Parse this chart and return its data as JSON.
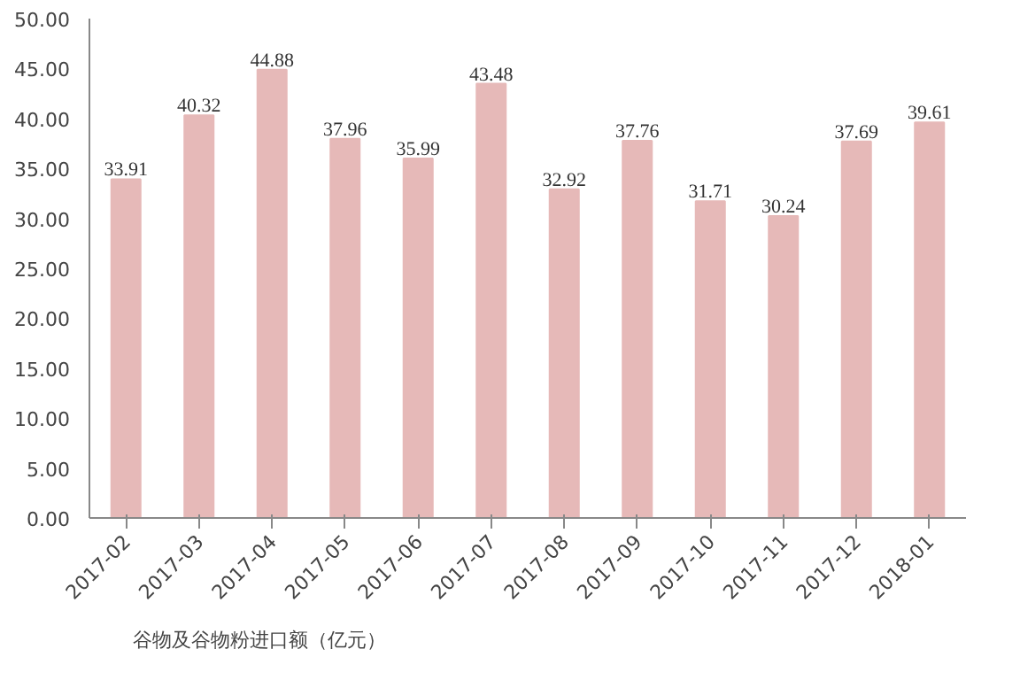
{
  "chart_data": {
    "type": "bar",
    "categories": [
      "2017-02",
      "2017-03",
      "2017-04",
      "2017-05",
      "2017-06",
      "2017-07",
      "2017-08",
      "2017-09",
      "2017-10",
      "2017-11",
      "2017-12",
      "2018-01"
    ],
    "series": [
      {
        "name": "谷物及谷物粉进口额（亿元）",
        "color": "#e6b9b8",
        "values": [
          33.91,
          40.32,
          44.88,
          37.96,
          35.99,
          43.48,
          32.92,
          37.76,
          31.71,
          30.24,
          37.69,
          39.61
        ]
      }
    ],
    "ylim": [
      0,
      50
    ],
    "yticks": [
      {
        "value": 0,
        "label": "0.00"
      },
      {
        "value": 5,
        "label": "5.00"
      },
      {
        "value": 10,
        "label": "10.00"
      },
      {
        "value": 15,
        "label": "15.00"
      },
      {
        "value": 20,
        "label": "20.00"
      },
      {
        "value": 25,
        "label": "25.00"
      },
      {
        "value": 30,
        "label": "30.00"
      },
      {
        "value": 35,
        "label": "35.00"
      },
      {
        "value": 40,
        "label": "40.00"
      },
      {
        "value": 45,
        "label": "45.00"
      },
      {
        "value": 50,
        "label": "50.00"
      }
    ],
    "data_labels": true,
    "grid": false,
    "legend": "bottom"
  }
}
